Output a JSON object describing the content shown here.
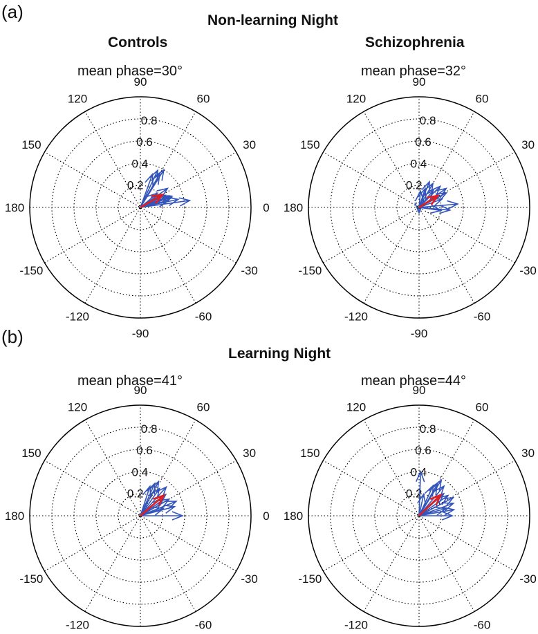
{
  "figure": {
    "panel_a_label": "(a)",
    "panel_b_label": "(b)",
    "section_a_title": "Non-learning Night",
    "section_b_title": "Learning Night",
    "group_controls": "Controls",
    "group_schizophrenia": "Schizophrenia"
  },
  "colors": {
    "vectors": "#3355bb",
    "mean": "#e02020",
    "axes": "#000000",
    "grid": "#000000"
  },
  "chart_data": [
    {
      "type": "polar-compass",
      "mean_label": "mean phase=30°",
      "mean_phase_deg": 30,
      "mean_magnitude": 0.23,
      "radial_ticks": [
        "0.2",
        "0.4",
        "0.6",
        "0.8"
      ],
      "angle_ticks": [
        "0",
        "30",
        "60",
        "90",
        "120",
        "150",
        "180",
        "-150",
        "-120",
        "-90",
        "-60",
        "-30"
      ],
      "rmax": 1.0,
      "vectors": [
        [
          0.45,
          8
        ],
        [
          0.35,
          12
        ],
        [
          0.3,
          18
        ],
        [
          0.28,
          22
        ],
        [
          0.25,
          26
        ],
        [
          0.3,
          35
        ],
        [
          0.22,
          28
        ],
        [
          0.35,
          60
        ],
        [
          0.37,
          65
        ],
        [
          0.32,
          70
        ],
        [
          0.4,
          58
        ],
        [
          0.2,
          40
        ],
        [
          0.3,
          20
        ],
        [
          0.26,
          14
        ]
      ]
    },
    {
      "type": "polar-compass",
      "mean_label": "mean phase=32°",
      "mean_phase_deg": 32,
      "mean_magnitude": 0.2,
      "radial_ticks": [
        "0.2",
        "0.4",
        "0.6",
        "0.8"
      ],
      "angle_ticks": [
        "0",
        "30",
        "60",
        "90",
        "120",
        "150",
        "180",
        "-150",
        "-120",
        "-90",
        "-60",
        "-30"
      ],
      "rmax": 1.0,
      "vectors": [
        [
          0.35,
          5
        ],
        [
          0.28,
          -5
        ],
        [
          0.3,
          35
        ],
        [
          0.27,
          45
        ],
        [
          0.25,
          60
        ],
        [
          0.25,
          68
        ],
        [
          0.15,
          85
        ],
        [
          0.05,
          -90
        ],
        [
          0.2,
          -8
        ],
        [
          0.22,
          20
        ],
        [
          0.28,
          28
        ],
        [
          0.18,
          72
        ],
        [
          0.2,
          50
        ]
      ]
    },
    {
      "type": "polar-compass",
      "mean_label": "mean phase=41°",
      "mean_phase_deg": 41,
      "mean_magnitude": 0.28,
      "radial_ticks": [
        "0.2",
        "0.4",
        "0.6",
        "0.8"
      ],
      "angle_ticks": [
        "0",
        "30",
        "60",
        "90",
        "120",
        "150",
        "180",
        "-150",
        "-120",
        "-90",
        "-60",
        "-30"
      ],
      "rmax": 1.0,
      "vectors": [
        [
          0.38,
          0
        ],
        [
          0.32,
          15
        ],
        [
          0.35,
          22
        ],
        [
          0.3,
          30
        ],
        [
          0.3,
          40
        ],
        [
          0.35,
          48
        ],
        [
          0.3,
          55
        ],
        [
          0.35,
          62
        ],
        [
          0.32,
          66
        ],
        [
          0.28,
          72
        ],
        [
          0.25,
          35
        ],
        [
          0.22,
          18
        ]
      ]
    },
    {
      "type": "polar-compass",
      "mean_label": "mean phase=44°",
      "mean_phase_deg": 44,
      "mean_magnitude": 0.27,
      "radial_ticks": [
        "0.2",
        "0.4",
        "0.6",
        "0.8"
      ],
      "angle_ticks": [
        "0",
        "30",
        "60",
        "90",
        "120",
        "150",
        "180",
        "-150",
        "-120",
        "-90",
        "-60",
        "-30"
      ],
      "rmax": 1.0,
      "vectors": [
        [
          0.3,
          0
        ],
        [
          0.32,
          10
        ],
        [
          0.33,
          20
        ],
        [
          0.35,
          28
        ],
        [
          0.32,
          35
        ],
        [
          0.3,
          42
        ],
        [
          0.35,
          50
        ],
        [
          0.38,
          58
        ],
        [
          0.3,
          65
        ],
        [
          0.33,
          60
        ],
        [
          0.4,
          88
        ],
        [
          0.2,
          78
        ],
        [
          0.25,
          15
        ]
      ]
    }
  ]
}
